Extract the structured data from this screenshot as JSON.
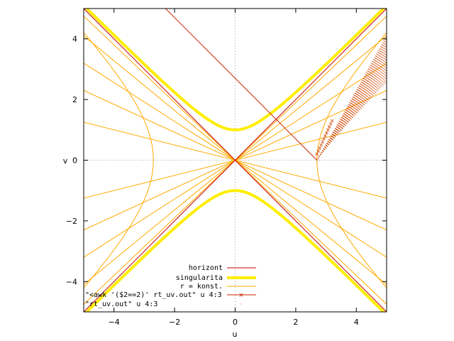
{
  "chart_data": {
    "type": "line",
    "xlabel": "u",
    "ylabel": "v",
    "xlim": [
      -5,
      5
    ],
    "ylim": [
      -5,
      5
    ],
    "xticks": [
      -4,
      -2,
      0,
      2,
      4
    ],
    "yticks": [
      -4,
      -2,
      0,
      2,
      4
    ],
    "grid": "zero-axes-dotted",
    "legend_position": "bottom-right",
    "colors": {
      "horizont": "#cc0000",
      "singularita": "#ffee00",
      "r_konst": "#ffaa00",
      "rt_line": "#cc2200",
      "rt_points": "#cc4400",
      "zero_axes": "#a0a0a0",
      "border": "#000000"
    },
    "series": [
      {
        "name": "horizont",
        "kind": "line",
        "description_points": [
          [
            -5,
            -5
          ],
          [
            5,
            5
          ],
          [
            -5,
            5
          ],
          [
            5,
            -5
          ]
        ]
      },
      {
        "name": "singularita",
        "kind": "hyperbola",
        "equation": "v^2 - u^2 = 1"
      },
      {
        "name": "r = konst.",
        "kind": "family",
        "t_lines_slopes": [
          0.25,
          0.46,
          0.64,
          0.82,
          0.95,
          -0.25,
          -0.46,
          -0.64,
          -0.82,
          -0.95
        ],
        "r_hyperbola_u0": [
          2.7,
          -2.7
        ]
      },
      {
        "name": "\"<awk '($2==2)' rt_uv.out\" u 4:3",
        "kind": "line",
        "points": [
          [
            -2.3,
            5
          ],
          [
            2.7,
            0
          ]
        ]
      },
      {
        "name": "\"rt_uv.out\"           u 4:3",
        "kind": "scatter",
        "region": "wedge from (2.7,0) toward u=5, v in [2.6,4]"
      }
    ]
  }
}
